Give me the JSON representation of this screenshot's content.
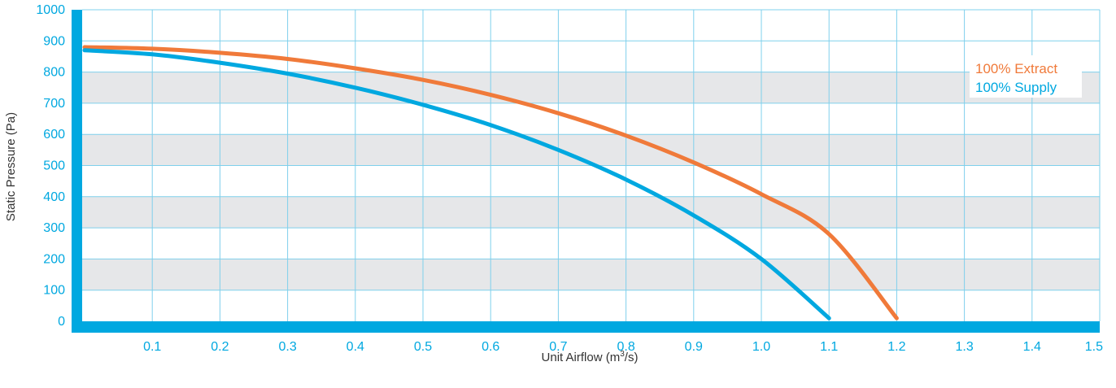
{
  "chart_data": {
    "type": "line",
    "xlabel": "Unit Airflow (m",
    "xlabel_sup": "3",
    "xlabel_suffix": "/s)",
    "ylabel": "Static Pressure (Pa)",
    "xlim": [
      0,
      1.5
    ],
    "ylim": [
      0,
      1000
    ],
    "x_ticks": [
      0.1,
      0.2,
      0.3,
      0.4,
      0.5,
      0.6,
      0.7,
      0.8,
      0.9,
      1.0,
      1.1,
      1.2,
      1.3,
      1.4,
      1.5
    ],
    "x_tick_labels": [
      "0.1",
      "0.2",
      "0.3",
      "0.4",
      "0.5",
      "0.6",
      "0.7",
      "0.8",
      "0.9",
      "1.0",
      "1.1",
      "1.2",
      "1.3",
      "1.4",
      "1.5"
    ],
    "y_ticks": [
      0,
      100,
      200,
      300,
      400,
      500,
      600,
      700,
      800,
      900,
      1000
    ],
    "y_tick_labels": [
      "0",
      "100",
      "200",
      "300",
      "400",
      "500",
      "600",
      "700",
      "800",
      "900",
      "1000"
    ],
    "grid": true,
    "banded_background": true,
    "legend_position": "top-right",
    "series": [
      {
        "name": "100% Extract",
        "color": "#f07a3a",
        "x": [
          0,
          0.1,
          0.2,
          0.3,
          0.4,
          0.5,
          0.6,
          0.7,
          0.8,
          0.9,
          1.0,
          1.1,
          1.2
        ],
        "y": [
          880,
          875,
          862,
          842,
          812,
          775,
          727,
          668,
          596,
          510,
          408,
          280,
          10
        ]
      },
      {
        "name": "100% Supply",
        "color": "#00a8e0",
        "x": [
          0,
          0.1,
          0.2,
          0.3,
          0.4,
          0.5,
          0.6,
          0.7,
          0.8,
          0.9,
          1.0,
          1.1
        ],
        "y": [
          870,
          857,
          830,
          795,
          750,
          695,
          630,
          550,
          455,
          340,
          200,
          10
        ]
      }
    ]
  }
}
